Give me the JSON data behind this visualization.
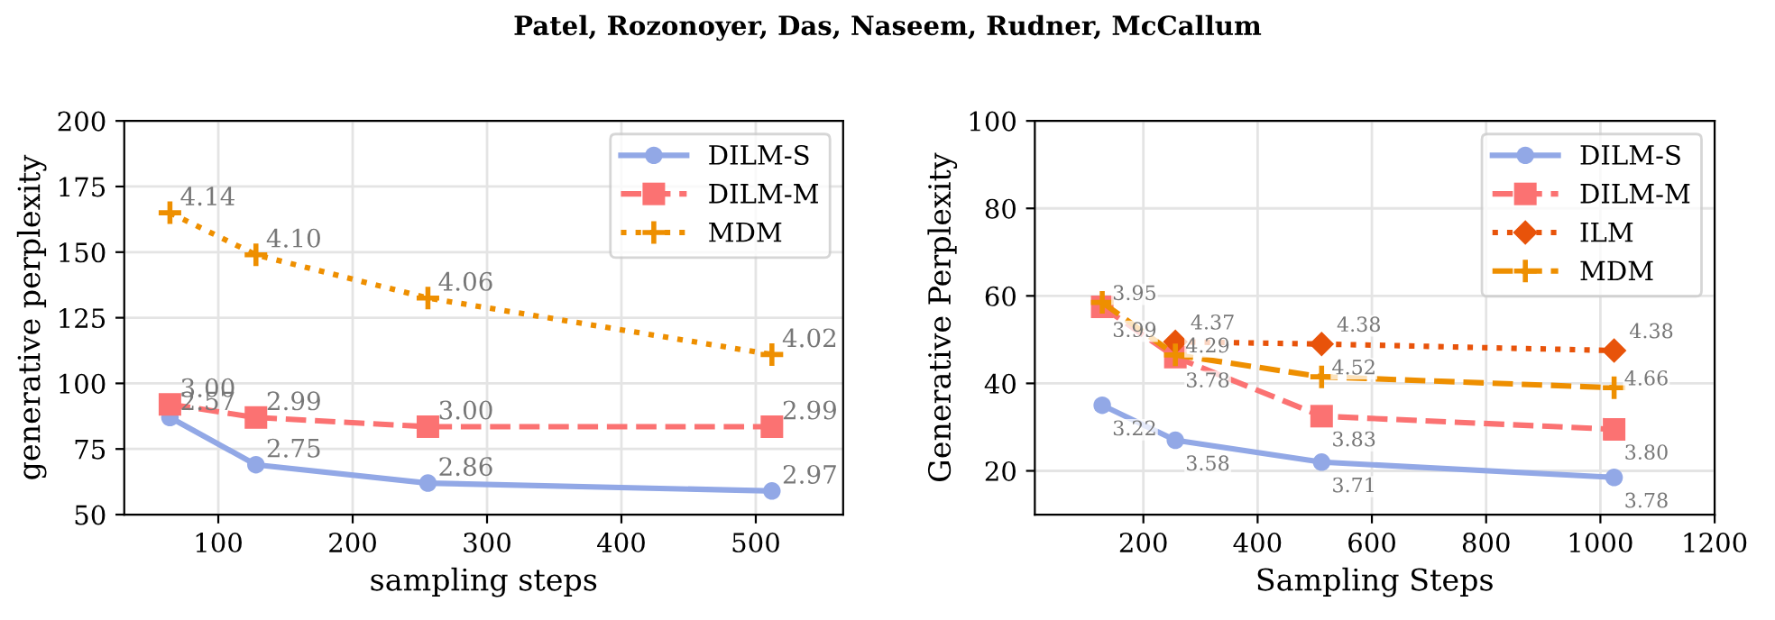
{
  "chart_data": [
    {
      "type": "line",
      "xlabel": "sampling steps",
      "ylabel": "generative perplexity",
      "x": [
        64,
        128,
        256,
        512
      ],
      "xlim": [
        30,
        565
      ],
      "xticks": [
        100,
        200,
        300,
        400,
        500
      ],
      "ylim": [
        50,
        200
      ],
      "yticks": [
        50,
        75,
        100,
        125,
        150,
        175,
        200
      ],
      "grid": true,
      "legend": "top right",
      "annotations": [
        "Patel, Rozonoyer, Das, Naseem, Rudner, McCallum",
        {
          "text": "2.57",
          "x": 64,
          "y": 87
        },
        {
          "text": "2.75",
          "x": 128,
          "y": 69
        },
        {
          "text": "2.86",
          "x": 256,
          "y": 62
        },
        {
          "text": "2.97",
          "x": 512,
          "y": 59
        },
        {
          "text": "3.00",
          "x": 64,
          "y": 92
        },
        {
          "text": "2.99",
          "x": 128,
          "y": 87
        },
        {
          "text": "3.00",
          "x": 256,
          "y": 83.5
        },
        {
          "text": "2.99",
          "x": 512,
          "y": 83.5
        },
        {
          "text": "4.14",
          "x": 64,
          "y": 165
        },
        {
          "text": "4.10",
          "x": 128,
          "y": 149
        },
        {
          "text": "4.06",
          "x": 256,
          "y": 132.5
        },
        {
          "text": "4.02",
          "x": 512,
          "y": 111
        }
      ],
      "series": [
        {
          "name": "DILM-S",
          "color": "#92a8e6",
          "marker": "circle",
          "line_style": "solid",
          "values": [
            87,
            69,
            62,
            59
          ]
        },
        {
          "name": "DILM-M",
          "color": "#fb7272",
          "marker": "square",
          "line_style": "dashed",
          "values": [
            92,
            87,
            83.5,
            83.5
          ]
        },
        {
          "name": "MDM",
          "color": "#ee8f00",
          "marker": "cross",
          "line_style": "dotted",
          "values": [
            165,
            149,
            132.5,
            111
          ]
        }
      ]
    },
    {
      "type": "line",
      "xlabel": "Sampling Steps",
      "ylabel": "Generative Perplexity",
      "x": [
        128,
        256,
        512,
        1024
      ],
      "xlim": [
        10,
        1200
      ],
      "xticks": [
        200,
        400,
        600,
        800,
        1000,
        1200
      ],
      "ylim": [
        10,
        100
      ],
      "yticks": [
        20,
        40,
        60,
        80,
        100
      ],
      "grid": true,
      "legend": "top right",
      "annotations": [
        {
          "text": "3.22",
          "x": 128,
          "y": 35
        },
        {
          "text": "3.58",
          "x": 256,
          "y": 27
        },
        {
          "text": "3.71",
          "x": 512,
          "y": 22
        },
        {
          "text": "3.78",
          "x": 1024,
          "y": 18.5
        },
        {
          "text": "3.99",
          "x": 128,
          "y": 57.5
        },
        {
          "text": "3.78",
          "x": 256,
          "y": 46
        },
        {
          "text": "3.83",
          "x": 512,
          "y": 32.5
        },
        {
          "text": "3.80",
          "x": 1024,
          "y": 29.5
        },
        {
          "text": "4.37",
          "x": 256,
          "y": 49.5
        },
        {
          "text": "4.38",
          "x": 512,
          "y": 49
        },
        {
          "text": "4.38",
          "x": 1024,
          "y": 47.5
        },
        {
          "text": "3.95",
          "x": 128,
          "y": 58.5
        },
        {
          "text": "4.29",
          "x": 256,
          "y": 46.5
        },
        {
          "text": "4.52",
          "x": 512,
          "y": 41.5
        },
        {
          "text": "4.66",
          "x": 1024,
          "y": 39
        }
      ],
      "series": [
        {
          "name": "DILM-S",
          "color": "#92a8e6",
          "marker": "circle",
          "line_style": "solid",
          "values": [
            35,
            27,
            22,
            18.5
          ]
        },
        {
          "name": "DILM-M",
          "color": "#fb7272",
          "marker": "square",
          "line_style": "dashed",
          "values": [
            57.5,
            46,
            32.5,
            29.5
          ]
        },
        {
          "name": "ILM",
          "color": "#e8530a",
          "marker": "diamond",
          "line_style": "dotted",
          "values": [
            null,
            49.5,
            49,
            47.5
          ]
        },
        {
          "name": "MDM",
          "color": "#ee8f00",
          "marker": "cross",
          "line_style": "dashed",
          "values": [
            58.5,
            46.5,
            41.5,
            39
          ]
        }
      ]
    }
  ]
}
